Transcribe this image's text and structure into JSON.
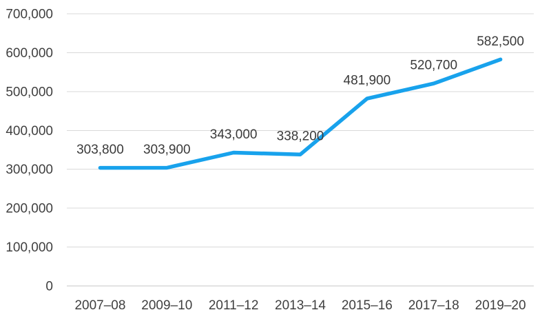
{
  "chart_data": {
    "type": "line",
    "title": "",
    "xlabel": "",
    "ylabel": "",
    "categories": [
      "2007–08",
      "2009–10",
      "2011–12",
      "2013–14",
      "2015–16",
      "2017–18",
      "2019–20"
    ],
    "series": [
      {
        "name": "",
        "values": [
          303800,
          303900,
          343000,
          338200,
          481900,
          520700,
          582500
        ]
      }
    ],
    "data_labels": [
      "303,800",
      "303,900",
      "343,000",
      "338,200",
      "481,900",
      "520,700",
      "582,500"
    ],
    "ylim": [
      0,
      700000
    ],
    "y_ticks": [
      0,
      100000,
      200000,
      300000,
      400000,
      500000,
      600000,
      700000
    ],
    "y_tick_labels": [
      "0",
      "100,000",
      "200,000",
      "300,000",
      "400,000",
      "500,000",
      "600,000",
      "700,000"
    ],
    "grid": "horizontal",
    "legend": "none",
    "markers": "none",
    "colors": {
      "line": "#18a2ec",
      "gridline": "#d9d9d9",
      "axis_line": "#c6c6c6",
      "tick_text": "#3f3f3f",
      "label_text": "#3a3a3a",
      "background": "#ffffff"
    }
  }
}
